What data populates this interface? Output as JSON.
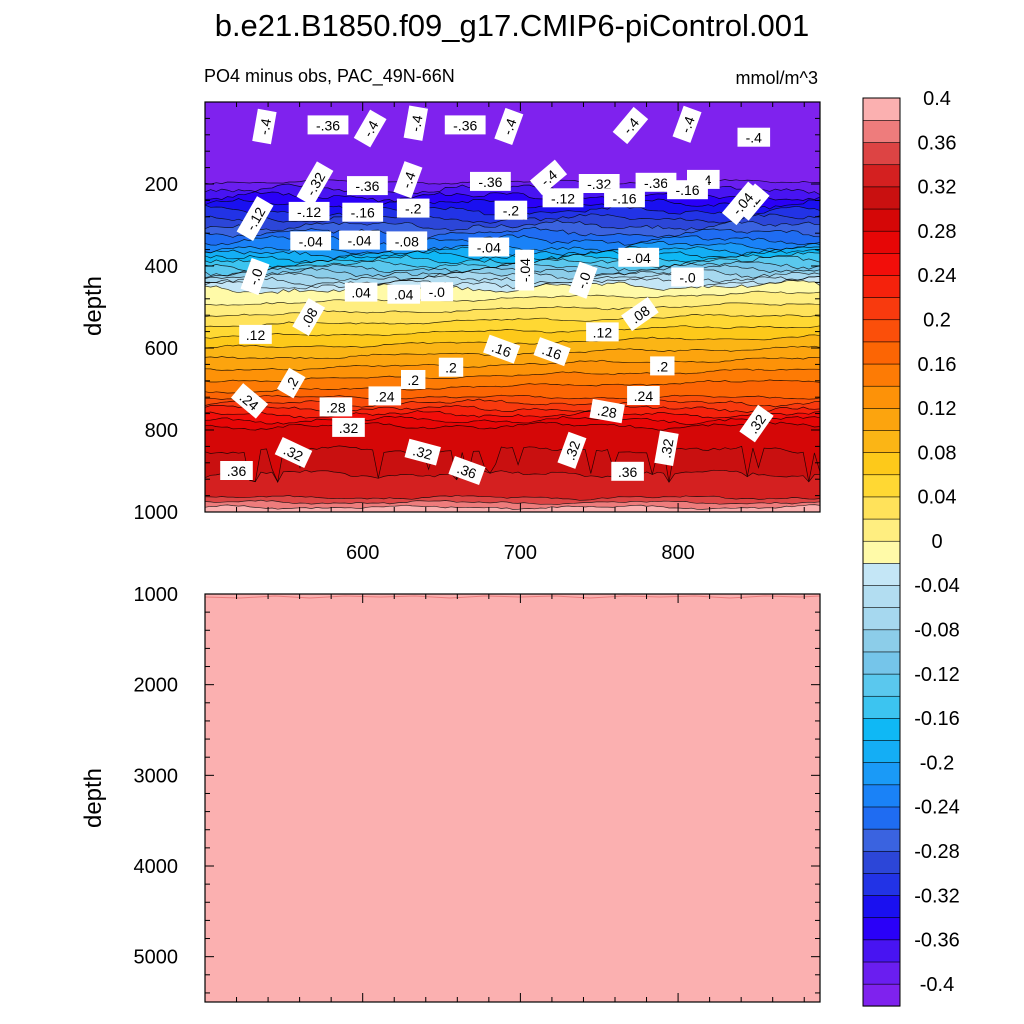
{
  "chart_data": {
    "type": "contour",
    "title": "b.e21.B1850.f09_g17.CMIP6-piControl.001",
    "units": "mmol/m^3",
    "subtitle": "PO4 minus obs, PAC_49N-66N",
    "colorbar": {
      "levels": [
        -0.4,
        -0.38,
        -0.36,
        -0.34,
        -0.32,
        -0.3,
        -0.28,
        -0.26,
        -0.24,
        -0.22,
        -0.2,
        -0.18,
        -0.16,
        -0.14,
        -0.12,
        -0.1,
        -0.08,
        -0.06,
        -0.04,
        -0.02,
        0,
        0.02,
        0.04,
        0.06,
        0.08,
        0.1,
        0.12,
        0.14,
        0.16,
        0.18,
        0.2,
        0.22,
        0.24,
        0.26,
        0.28,
        0.3,
        0.32,
        0.34,
        0.36,
        0.38,
        0.4
      ],
      "labels": [
        "-0.4",
        "-0.36",
        "-0.32",
        "-0.28",
        "-0.24",
        "-0.2",
        "-0.16",
        "-0.12",
        "-0.08",
        "-0.04",
        "0",
        "0.04",
        "0.08",
        "0.12",
        "0.16",
        "0.2",
        "0.24",
        "0.28",
        "0.32",
        "0.36",
        "0.4"
      ],
      "colors": [
        "#7f22ee",
        "#6a1ef0",
        "#4814f2",
        "#2a00f8",
        "#1a10f0",
        "#2233e6",
        "#2c46d8",
        "#3a63e0",
        "#1f6cf2",
        "#1a82f7",
        "#1a9af7",
        "#14aef5",
        "#0fb8f5",
        "#3cc4f0",
        "#5ac8ee",
        "#75c5ea",
        "#8ccde9",
        "#a6d8ef",
        "#b2ddf1",
        "#c4e6f6",
        "#fffaa8",
        "#ffee80",
        "#ffe25a",
        "#ffd833",
        "#fdc91a",
        "#fbb515",
        "#fca40e",
        "#fd9208",
        "#fd7b05",
        "#fc6504",
        "#fb4f0a",
        "#f83a0e",
        "#f5220c",
        "#f20e0a",
        "#e60606",
        "#d50707",
        "#c91010",
        "#d42020",
        "#dd4444",
        "#ee7c7c",
        "#fbb0b0"
      ]
    },
    "panels": [
      {
        "name": "upper",
        "xlabel": "",
        "ylabel": "depth",
        "xlim": [
          500,
          890
        ],
        "ylim": [
          1000,
          0
        ],
        "xticks": [
          600,
          700,
          800
        ],
        "yticks": [
          200,
          400,
          600,
          800,
          1000
        ],
        "contour_labels": [
          {
            "text": "-.4",
            "x": 538,
            "y": 60,
            "rot": -80
          },
          {
            "text": "-.36",
            "x": 578,
            "y": 57,
            "rot": 0
          },
          {
            "text": "-.4",
            "x": 605,
            "y": 65,
            "rot": -60
          },
          {
            "text": "-.4",
            "x": 634,
            "y": 52,
            "rot": -80
          },
          {
            "text": "-.36",
            "x": 665,
            "y": 57,
            "rot": 0
          },
          {
            "text": "-.4",
            "x": 693,
            "y": 60,
            "rot": -70
          },
          {
            "text": "-.4",
            "x": 770,
            "y": 58,
            "rot": -50
          },
          {
            "text": "-.4",
            "x": 806,
            "y": 55,
            "rot": -70
          },
          {
            "text": "-.4",
            "x": 848,
            "y": 87,
            "rot": 0
          },
          {
            "text": "-.32",
            "x": 570,
            "y": 200,
            "rot": -60
          },
          {
            "text": "-.36",
            "x": 603,
            "y": 205,
            "rot": 0
          },
          {
            "text": "-.4",
            "x": 629,
            "y": 190,
            "rot": -70
          },
          {
            "text": "-.36",
            "x": 681,
            "y": 195,
            "rot": 0
          },
          {
            "text": "-.4",
            "x": 718,
            "y": 185,
            "rot": -40
          },
          {
            "text": "-.32",
            "x": 750,
            "y": 200,
            "rot": 0
          },
          {
            "text": "-.36",
            "x": 786,
            "y": 197,
            "rot": 0
          },
          {
            "text": "-.4",
            "x": 816,
            "y": 190,
            "rot": 0
          },
          {
            "text": "-.2",
            "x": 847,
            "y": 245,
            "rot": -50
          },
          {
            "text": "-.12",
            "x": 532,
            "y": 285,
            "rot": -60
          },
          {
            "text": "-.12",
            "x": 566,
            "y": 268,
            "rot": 0
          },
          {
            "text": "-.16",
            "x": 600,
            "y": 270,
            "rot": 0
          },
          {
            "text": "-.2",
            "x": 632,
            "y": 260,
            "rot": 0
          },
          {
            "text": "-.2",
            "x": 694,
            "y": 265,
            "rot": 0
          },
          {
            "text": "-.12",
            "x": 727,
            "y": 235,
            "rot": 0
          },
          {
            "text": "-.16",
            "x": 766,
            "y": 235,
            "rot": 0
          },
          {
            "text": "-.16",
            "x": 806,
            "y": 215,
            "rot": 0
          },
          {
            "text": "-.04",
            "x": 841,
            "y": 248,
            "rot": -50
          },
          {
            "text": "-.08",
            "x": 628,
            "y": 340,
            "rot": 0
          },
          {
            "text": "-.04",
            "x": 598,
            "y": 338,
            "rot": 0
          },
          {
            "text": "-.04",
            "x": 567,
            "y": 340,
            "rot": 0
          },
          {
            "text": "-.04",
            "x": 680,
            "y": 355,
            "rot": 0
          },
          {
            "text": "-.04",
            "x": 703,
            "y": 410,
            "rot": -90
          },
          {
            "text": "-.04",
            "x": 775,
            "y": 380,
            "rot": 0
          },
          {
            "text": "-.0",
            "x": 532,
            "y": 426,
            "rot": -70
          },
          {
            "text": "-.0",
            "x": 740,
            "y": 435,
            "rot": -70
          },
          {
            "text": "-.0",
            "x": 806,
            "y": 428,
            "rot": 0
          },
          {
            "text": "-.0",
            "x": 647,
            "y": 464,
            "rot": 0
          },
          {
            "text": ".04",
            "x": 599,
            "y": 465,
            "rot": 0
          },
          {
            "text": ".04",
            "x": 626,
            "y": 470,
            "rot": 0
          },
          {
            "text": ".08",
            "x": 566,
            "y": 525,
            "rot": -60
          },
          {
            "text": ".08",
            "x": 776,
            "y": 518,
            "rot": -35
          },
          {
            "text": ".12",
            "x": 532,
            "y": 568,
            "rot": 0
          },
          {
            "text": ".12",
            "x": 752,
            "y": 562,
            "rot": 0
          },
          {
            "text": ".16",
            "x": 688,
            "y": 604,
            "rot": 20
          },
          {
            "text": ".16",
            "x": 720,
            "y": 610,
            "rot": 20
          },
          {
            "text": ".2",
            "x": 555,
            "y": 686,
            "rot": -60
          },
          {
            "text": ".2",
            "x": 632,
            "y": 678,
            "rot": 0
          },
          {
            "text": ".2",
            "x": 656,
            "y": 648,
            "rot": 0
          },
          {
            "text": ".2",
            "x": 790,
            "y": 645,
            "rot": 0
          },
          {
            "text": ".24",
            "x": 528,
            "y": 730,
            "rot": 40
          },
          {
            "text": ".24",
            "x": 614,
            "y": 718,
            "rot": 0
          },
          {
            "text": ".24",
            "x": 778,
            "y": 717,
            "rot": 0
          },
          {
            "text": ".28",
            "x": 583,
            "y": 745,
            "rot": 0
          },
          {
            "text": ".28",
            "x": 755,
            "y": 755,
            "rot": 10
          },
          {
            "text": ".32",
            "x": 850,
            "y": 785,
            "rot": -55
          },
          {
            "text": ".32",
            "x": 591,
            "y": 795,
            "rot": 0
          },
          {
            "text": ".32",
            "x": 556,
            "y": 856,
            "rot": 25
          },
          {
            "text": ".32",
            "x": 638,
            "y": 855,
            "rot": 15
          },
          {
            "text": ".32",
            "x": 733,
            "y": 850,
            "rot": -70
          },
          {
            "text": ".32",
            "x": 793,
            "y": 845,
            "rot": -80
          },
          {
            "text": ".36",
            "x": 520,
            "y": 900,
            "rot": 0
          },
          {
            "text": ".36",
            "x": 666,
            "y": 900,
            "rot": 20
          },
          {
            "text": ".36",
            "x": 768,
            "y": 902,
            "rot": 0
          }
        ]
      },
      {
        "name": "lower",
        "xlabel": "",
        "ylabel": "depth",
        "xlim": [
          500,
          890
        ],
        "ylim": [
          5500,
          1000
        ],
        "yticks": [
          1000,
          2000,
          3000,
          4000,
          5000
        ],
        "fill_value": 0.4
      }
    ]
  }
}
